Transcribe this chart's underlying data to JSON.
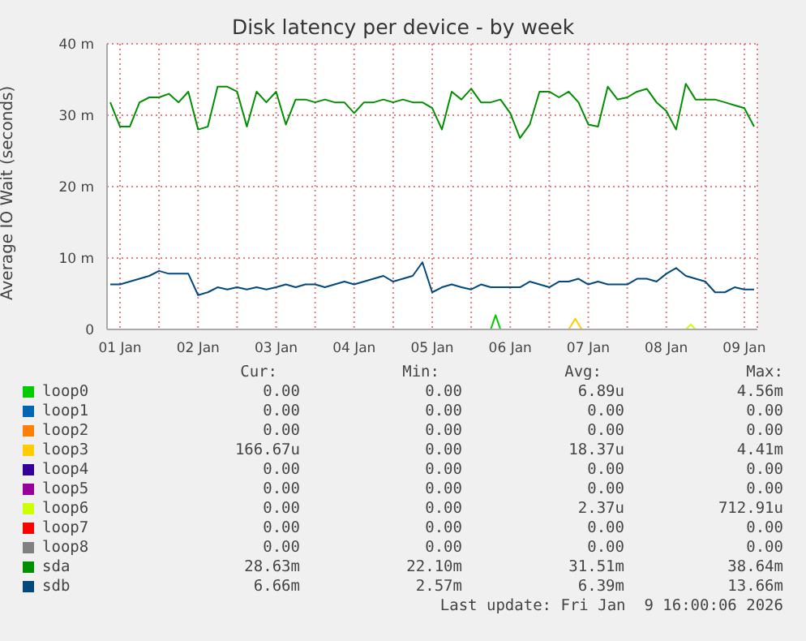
{
  "chart_data": {
    "type": "line",
    "title": "Disk latency per device - by week",
    "ylabel": "Average IO Wait (seconds)",
    "x": [
      "2026-01-01T09:00",
      "2026-01-01T12:00",
      "2026-01-01T15:00",
      "2026-01-01T18:00",
      "2026-01-01T21:00",
      "2026-01-02T00:00",
      "2026-01-02T03:00",
      "2026-01-02T06:00",
      "2026-01-02T09:00",
      "2026-01-02T12:00",
      "2026-01-02T15:00",
      "2026-01-02T18:00",
      "2026-01-02T21:00",
      "2026-01-03T00:00",
      "2026-01-03T03:00",
      "2026-01-03T06:00",
      "2026-01-03T09:00",
      "2026-01-03T12:00",
      "2026-01-03T15:00",
      "2026-01-03T18:00",
      "2026-01-03T21:00",
      "2026-01-04T00:00",
      "2026-01-04T03:00",
      "2026-01-04T06:00",
      "2026-01-04T09:00",
      "2026-01-04T12:00",
      "2026-01-04T15:00",
      "2026-01-04T18:00",
      "2026-01-04T21:00",
      "2026-01-05T00:00",
      "2026-01-05T03:00",
      "2026-01-05T06:00",
      "2026-01-05T09:00",
      "2026-01-05T12:00",
      "2026-01-05T15:00",
      "2026-01-05T18:00",
      "2026-01-05T21:00",
      "2026-01-06T00:00",
      "2026-01-06T03:00",
      "2026-01-06T06:00",
      "2026-01-06T09:00",
      "2026-01-06T12:00",
      "2026-01-06T15:00",
      "2026-01-06T18:00",
      "2026-01-06T21:00",
      "2026-01-07T00:00",
      "2026-01-07T03:00",
      "2026-01-07T06:00",
      "2026-01-07T09:00",
      "2026-01-07T12:00",
      "2026-01-07T15:00",
      "2026-01-07T18:00",
      "2026-01-07T21:00",
      "2026-01-08T00:00",
      "2026-01-08T03:00",
      "2026-01-08T06:00",
      "2026-01-08T09:00",
      "2026-01-08T12:00",
      "2026-01-08T15:00",
      "2026-01-08T18:00",
      "2026-01-08T21:00",
      "2026-01-09T00:00",
      "2026-01-09T03:00",
      "2026-01-09T06:00",
      "2026-01-09T09:00",
      "2026-01-09T12:00",
      "2026-01-09T15:00"
    ],
    "series": [
      {
        "name": "loop0",
        "color": "#00cc00",
        "x": [
          "2026-01-06T06:00",
          "2026-01-06T07:30",
          "2026-01-06T09:00"
        ],
        "values": [
          0,
          2,
          0
        ]
      },
      {
        "name": "loop1",
        "color": "#0066b3",
        "values": [
          null,
          null,
          null,
          null,
          null,
          null,
          null,
          null,
          null,
          null,
          null,
          null,
          null,
          null,
          null,
          null,
          null,
          null,
          null,
          null,
          null,
          null,
          null,
          null,
          null,
          null,
          null,
          null,
          null,
          null,
          null,
          null,
          null,
          null,
          null,
          null,
          null,
          null,
          null,
          null,
          null,
          null,
          null,
          null,
          null,
          null,
          null,
          null,
          null,
          null,
          null,
          null,
          null,
          null,
          null,
          null,
          null,
          null,
          null,
          null,
          null,
          null,
          null,
          null,
          null,
          null,
          null
        ]
      },
      {
        "name": "loop2",
        "color": "#ff8000",
        "values": [
          null,
          null,
          null,
          null,
          null,
          null,
          null,
          null,
          null,
          null,
          null,
          null,
          null,
          null,
          null,
          null,
          null,
          null,
          null,
          null,
          null,
          null,
          null,
          null,
          null,
          null,
          null,
          null,
          null,
          null,
          null,
          null,
          null,
          null,
          null,
          null,
          null,
          null,
          null,
          null,
          null,
          null,
          null,
          null,
          null,
          null,
          null,
          null,
          null,
          null,
          null,
          null,
          null,
          null,
          null,
          null,
          null,
          null,
          null,
          null,
          null,
          null,
          null,
          null,
          null,
          null,
          null
        ]
      },
      {
        "name": "loop3",
        "color": "#ffcc00",
        "x": [
          "2026-01-07T06:00",
          "2026-01-07T08:00",
          "2026-01-07T10:00"
        ],
        "values": [
          0,
          1.5,
          0
        ]
      },
      {
        "name": "loop4",
        "color": "#330099",
        "values": [
          null,
          null,
          null,
          null,
          null,
          null,
          null,
          null,
          null,
          null,
          null,
          null,
          null,
          null,
          null,
          null,
          null,
          null,
          null,
          null,
          null,
          null,
          null,
          null,
          null,
          null,
          null,
          null,
          null,
          null,
          null,
          null,
          null,
          null,
          null,
          null,
          null,
          null,
          null,
          null,
          null,
          null,
          null,
          null,
          null,
          null,
          null,
          null,
          null,
          null,
          null,
          null,
          null,
          null,
          null,
          null,
          null,
          null,
          null,
          null,
          null,
          null,
          null,
          null,
          null,
          null,
          null
        ]
      },
      {
        "name": "loop5",
        "color": "#990099",
        "values": [
          null,
          null,
          null,
          null,
          null,
          null,
          null,
          null,
          null,
          null,
          null,
          null,
          null,
          null,
          null,
          null,
          null,
          null,
          null,
          null,
          null,
          null,
          null,
          null,
          null,
          null,
          null,
          null,
          null,
          null,
          null,
          null,
          null,
          null,
          null,
          null,
          null,
          null,
          null,
          null,
          null,
          null,
          null,
          null,
          null,
          null,
          null,
          null,
          null,
          null,
          null,
          null,
          null,
          null,
          null,
          null,
          null,
          null,
          null,
          null,
          null,
          null,
          null,
          null,
          null,
          null,
          null
        ]
      },
      {
        "name": "loop6",
        "color": "#ccff00",
        "x": [
          "2026-01-08T18:00",
          "2026-01-08T19:30",
          "2026-01-08T21:00"
        ],
        "values": [
          0,
          0.7,
          0
        ]
      },
      {
        "name": "loop7",
        "color": "#ff0000",
        "values": [
          null,
          null,
          null,
          null,
          null,
          null,
          null,
          null,
          null,
          null,
          null,
          null,
          null,
          null,
          null,
          null,
          null,
          null,
          null,
          null,
          null,
          null,
          null,
          null,
          null,
          null,
          null,
          null,
          null,
          null,
          null,
          null,
          null,
          null,
          null,
          null,
          null,
          null,
          null,
          null,
          null,
          null,
          null,
          null,
          null,
          null,
          null,
          null,
          null,
          null,
          null,
          null,
          null,
          null,
          null,
          null,
          null,
          null,
          null,
          null,
          null,
          null,
          null,
          null,
          null,
          null,
          null
        ]
      },
      {
        "name": "loop8",
        "color": "#808080",
        "values": [
          null,
          null,
          null,
          null,
          null,
          null,
          null,
          null,
          null,
          null,
          null,
          null,
          null,
          null,
          null,
          null,
          null,
          null,
          null,
          null,
          null,
          null,
          null,
          null,
          null,
          null,
          null,
          null,
          null,
          null,
          null,
          null,
          null,
          null,
          null,
          null,
          null,
          null,
          null,
          null,
          null,
          null,
          null,
          null,
          null,
          null,
          null,
          null,
          null,
          null,
          null,
          null,
          null,
          null,
          null,
          null,
          null,
          null,
          null,
          null,
          null,
          null,
          null,
          null,
          null,
          null,
          null
        ]
      },
      {
        "name": "sda",
        "color": "#008f00",
        "values": [
          31.8,
          28.4,
          28.4,
          31.8,
          32.5,
          32.5,
          33,
          31.8,
          33.3,
          28,
          28.4,
          34,
          34,
          33.3,
          28.4,
          33.3,
          31.8,
          33.3,
          28.7,
          32.2,
          32.2,
          31.8,
          32.2,
          31.8,
          31.8,
          30.3,
          31.8,
          31.8,
          32.2,
          31.8,
          32.2,
          31.8,
          31.8,
          31,
          28,
          33.3,
          32.2,
          33.7,
          31.8,
          31.8,
          32.2,
          30.3,
          26.8,
          28.7,
          33.3,
          33.3,
          32.5,
          33.3,
          31.8,
          28.7,
          28.4,
          34,
          32.2,
          32.5,
          33.3,
          33.7,
          31.8,
          30.6,
          28,
          34.4,
          32.2,
          32.2,
          32.2,
          31.8,
          31.4,
          31,
          28.4
        ]
      },
      {
        "name": "sdb",
        "color": "#00487d",
        "values": [
          6.3,
          6.3,
          6.7,
          7.1,
          7.5,
          8.2,
          7.8,
          7.8,
          7.8,
          4.8,
          5.2,
          5.9,
          5.6,
          5.9,
          5.6,
          5.9,
          5.6,
          5.9,
          6.3,
          5.9,
          6.3,
          6.3,
          5.9,
          6.3,
          6.7,
          6.3,
          6.7,
          7.1,
          7.5,
          6.7,
          7.1,
          7.5,
          9.4,
          5.2,
          5.9,
          6.3,
          5.9,
          5.6,
          6.3,
          5.9,
          5.9,
          5.9,
          5.9,
          6.7,
          6.3,
          5.9,
          6.7,
          6.7,
          7.1,
          6.3,
          6.7,
          6.3,
          6.3,
          6.3,
          7.1,
          7.1,
          6.7,
          7.8,
          8.6,
          7.5,
          7.1,
          6.7,
          5.2,
          5.2,
          5.9,
          5.6,
          5.6
        ]
      }
    ],
    "xlim": [
      "2026-01-01T08:00",
      "2026-01-09T16:00"
    ],
    "xticks": [
      {
        "value": "2026-01-01T12:00",
        "label": "01 Jan"
      },
      {
        "value": "2026-01-02T00:00",
        "label": null
      },
      {
        "value": "2026-01-02T12:00",
        "label": "02 Jan"
      },
      {
        "value": "2026-01-03T00:00",
        "label": null
      },
      {
        "value": "2026-01-03T12:00",
        "label": "03 Jan"
      },
      {
        "value": "2026-01-04T00:00",
        "label": null
      },
      {
        "value": "2026-01-04T12:00",
        "label": "04 Jan"
      },
      {
        "value": "2026-01-05T00:00",
        "label": null
      },
      {
        "value": "2026-01-05T12:00",
        "label": "05 Jan"
      },
      {
        "value": "2026-01-06T00:00",
        "label": null
      },
      {
        "value": "2026-01-06T12:00",
        "label": "06 Jan"
      },
      {
        "value": "2026-01-07T00:00",
        "label": null
      },
      {
        "value": "2026-01-07T12:00",
        "label": "07 Jan"
      },
      {
        "value": "2026-01-08T00:00",
        "label": null
      },
      {
        "value": "2026-01-08T12:00",
        "label": "08 Jan"
      },
      {
        "value": "2026-01-09T00:00",
        "label": null
      },
      {
        "value": "2026-01-09T12:00",
        "label": "09 Jan"
      }
    ],
    "ylim": [
      0,
      40
    ],
    "yticks": [
      0,
      {
        "value": 10,
        "label": "10 m"
      },
      {
        "value": 20,
        "label": "20 m"
      },
      {
        "value": 30,
        "label": "30 m"
      },
      {
        "value": 40,
        "label": "40 m"
      }
    ],
    "grid": true,
    "legend": "bottom",
    "annotations": [
      "Cur:",
      "Min:",
      "Avg:",
      "Max:",
      "0.00",
      "0.00",
      "6.89u",
      "4.56m",
      "0.00",
      "0.00",
      "0.00",
      "0.00",
      "0.00",
      "0.00",
      "0.00",
      "0.00",
      "166.67u",
      "0.00",
      "18.37u",
      "4.41m",
      "0.00",
      "0.00",
      "0.00",
      "0.00",
      "0.00",
      "0.00",
      "0.00",
      "0.00",
      "0.00",
      "0.00",
      "2.37u",
      "712.91u",
      "0.00",
      "0.00",
      "0.00",
      "0.00",
      "0.00",
      "0.00",
      "0.00",
      "0.00",
      "28.63m",
      "22.10m",
      "31.51m",
      "38.64m",
      "6.66m",
      "2.57m",
      "6.39m",
      "13.66m",
      "Last update: Fri Jan  9 16:00:06 2026"
    ]
  }
}
